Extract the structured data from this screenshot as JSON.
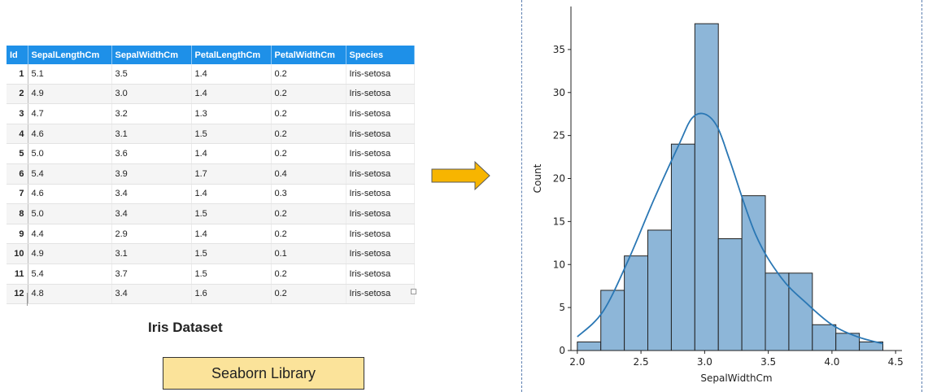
{
  "table": {
    "headers": [
      "Id",
      "SepalLengthCm",
      "SepalWidthCm",
      "PetalLengthCm",
      "PetalWidthCm",
      "Species"
    ],
    "rows": [
      [
        "1",
        "5.1",
        "3.5",
        "1.4",
        "0.2",
        "Iris-setosa"
      ],
      [
        "2",
        "4.9",
        "3.0",
        "1.4",
        "0.2",
        "Iris-setosa"
      ],
      [
        "3",
        "4.7",
        "3.2",
        "1.3",
        "0.2",
        "Iris-setosa"
      ],
      [
        "4",
        "4.6",
        "3.1",
        "1.5",
        "0.2",
        "Iris-setosa"
      ],
      [
        "5",
        "5.0",
        "3.6",
        "1.4",
        "0.2",
        "Iris-setosa"
      ],
      [
        "6",
        "5.4",
        "3.9",
        "1.7",
        "0.4",
        "Iris-setosa"
      ],
      [
        "7",
        "4.6",
        "3.4",
        "1.4",
        "0.3",
        "Iris-setosa"
      ],
      [
        "8",
        "5.0",
        "3.4",
        "1.5",
        "0.2",
        "Iris-setosa"
      ],
      [
        "9",
        "4.4",
        "2.9",
        "1.4",
        "0.2",
        "Iris-setosa"
      ],
      [
        "10",
        "4.9",
        "3.1",
        "1.5",
        "0.1",
        "Iris-setosa"
      ],
      [
        "11",
        "5.4",
        "3.7",
        "1.5",
        "0.2",
        "Iris-setosa"
      ],
      [
        "12",
        "4.8",
        "3.4",
        "1.6",
        "0.2",
        "Iris-setosa"
      ]
    ]
  },
  "caption": "Iris Dataset",
  "library_label": "Seaborn Library",
  "colors": {
    "table_header": "#1e90e8",
    "bar_fill": "#8db6d8",
    "kde_line": "#2a77b4",
    "arrow_fill": "#f7b500",
    "library_box": "#fbe39a"
  },
  "chart_data": {
    "type": "histogram",
    "xlabel": "SepalWidthCm",
    "ylabel": "Count",
    "xlim": [
      1.95,
      4.55
    ],
    "ylim": [
      0,
      40
    ],
    "xticks": [
      "2.0",
      "2.5",
      "3.0",
      "3.5",
      "4.0",
      "4.5"
    ],
    "yticks": [
      "0",
      "5",
      "10",
      "15",
      "20",
      "25",
      "30",
      "35"
    ],
    "bins": [
      {
        "x0": 2.0,
        "x1": 2.1846,
        "count": 1
      },
      {
        "x0": 2.1846,
        "x1": 2.3692,
        "count": 7
      },
      {
        "x0": 2.3692,
        "x1": 2.5538,
        "count": 11
      },
      {
        "x0": 2.5538,
        "x1": 2.7385,
        "count": 14
      },
      {
        "x0": 2.7385,
        "x1": 2.9231,
        "count": 24
      },
      {
        "x0": 2.9231,
        "x1": 3.1077,
        "count": 38
      },
      {
        "x0": 3.1077,
        "x1": 3.2923,
        "count": 13
      },
      {
        "x0": 3.2923,
        "x1": 3.4769,
        "count": 18
      },
      {
        "x0": 3.4769,
        "x1": 3.6615,
        "count": 9
      },
      {
        "x0": 3.6615,
        "x1": 3.8462,
        "count": 9
      },
      {
        "x0": 3.8462,
        "x1": 4.0308,
        "count": 3
      },
      {
        "x0": 4.0308,
        "x1": 4.2154,
        "count": 2
      },
      {
        "x0": 4.2154,
        "x1": 4.4,
        "count": 1
      }
    ],
    "kde": {
      "x": [
        2.0,
        2.2,
        2.4,
        2.6,
        2.8,
        2.9,
        3.0,
        3.1,
        3.2,
        3.4,
        3.6,
        3.8,
        4.0,
        4.2,
        4.4
      ],
      "y": [
        1.6,
        4.5,
        10.5,
        17.5,
        24.0,
        27.0,
        27.5,
        26.0,
        22.0,
        13.5,
        8.5,
        5.5,
        3.0,
        1.6,
        0.8
      ]
    }
  }
}
